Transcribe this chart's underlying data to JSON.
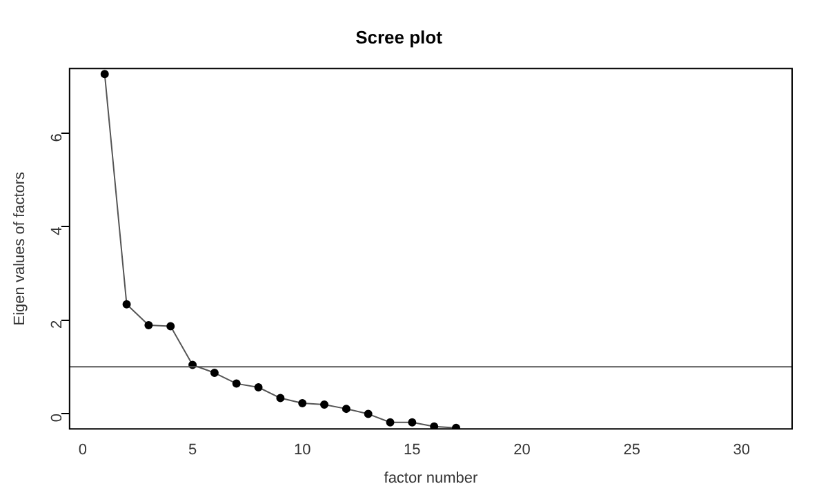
{
  "chart_data": {
    "type": "line",
    "title": "Scree plot",
    "xlabel": "factor number",
    "ylabel": "Eigen values of factors",
    "x": [
      1,
      2,
      3,
      4,
      5,
      6,
      7,
      8,
      9,
      10,
      11,
      12,
      13,
      14,
      15,
      16,
      17
    ],
    "series": [
      {
        "color": "#000000",
        "values": [
          7.27,
          2.34,
          1.89,
          1.87,
          1.04,
          0.87,
          0.64,
          0.56,
          0.33,
          0.22,
          0.19,
          0.1,
          -0.01,
          -0.19,
          -0.19,
          -0.28,
          -0.31
        ]
      }
    ],
    "xlim": [
      -0.6,
      32.3
    ],
    "xticks": [
      0,
      5,
      10,
      15,
      20,
      25,
      30
    ],
    "ylim": [
      -0.33,
      7.39
    ],
    "yticks": [
      0,
      2,
      4,
      6
    ],
    "ref_lines": [
      {
        "axis": "y",
        "value": 1,
        "color": "#555555"
      }
    ],
    "grid": false,
    "legend": false,
    "marker": "circle",
    "line_style": "solid"
  }
}
